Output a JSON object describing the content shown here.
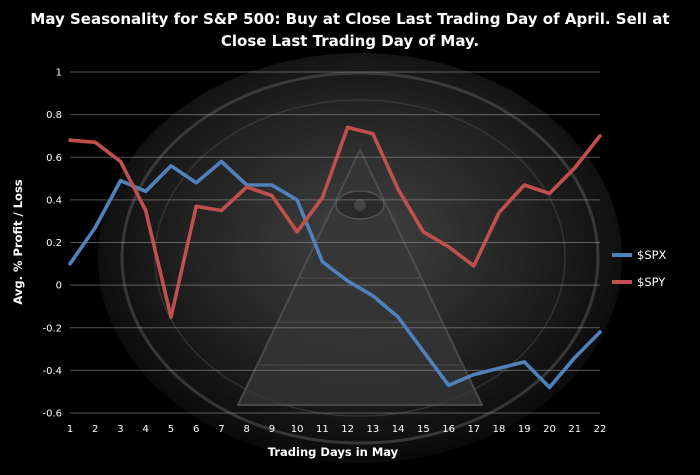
{
  "chart_data": {
    "type": "line",
    "title_line1": "May Seasonality for S&P 500: Buy at Close Last Trading Day of April. Sell at",
    "title_line2": "Close Last Trading Day of May.",
    "xlabel": "Trading Days in May",
    "ylabel": "Avg. % Profit / Loss",
    "x": [
      1,
      2,
      3,
      4,
      5,
      6,
      7,
      8,
      9,
      10,
      11,
      12,
      13,
      14,
      15,
      16,
      17,
      18,
      19,
      20,
      21,
      22
    ],
    "ylim": [
      -0.6,
      1
    ],
    "yticks": [
      1,
      0.8,
      0.6,
      0.4,
      0.2,
      0,
      -0.2,
      -0.4,
      -0.6
    ],
    "ytick_labels": [
      "1",
      "0.8",
      "0.6",
      "0.4",
      "0.2",
      "0",
      "-0.2",
      "-0.4",
      "-0.6"
    ],
    "grid": "horizontal",
    "legend_position": "right",
    "series": [
      {
        "name": "$SPX",
        "color": "#4f81bd",
        "values": [
          0.1,
          0.27,
          0.49,
          0.44,
          0.56,
          0.48,
          0.58,
          0.47,
          0.47,
          0.4,
          0.11,
          0.02,
          -0.05,
          -0.15,
          -0.31,
          -0.47,
          -0.42,
          -0.39,
          -0.36,
          -0.48,
          -0.34,
          -0.22
        ]
      },
      {
        "name": "$SPY",
        "color": "#c0504d",
        "values": [
          0.68,
          0.67,
          0.58,
          0.35,
          -0.15,
          0.37,
          0.35,
          0.46,
          0.42,
          0.25,
          0.41,
          0.74,
          0.71,
          0.45,
          0.25,
          0.18,
          0.09,
          0.34,
          0.47,
          0.43,
          0.55,
          0.7
        ]
      }
    ]
  }
}
